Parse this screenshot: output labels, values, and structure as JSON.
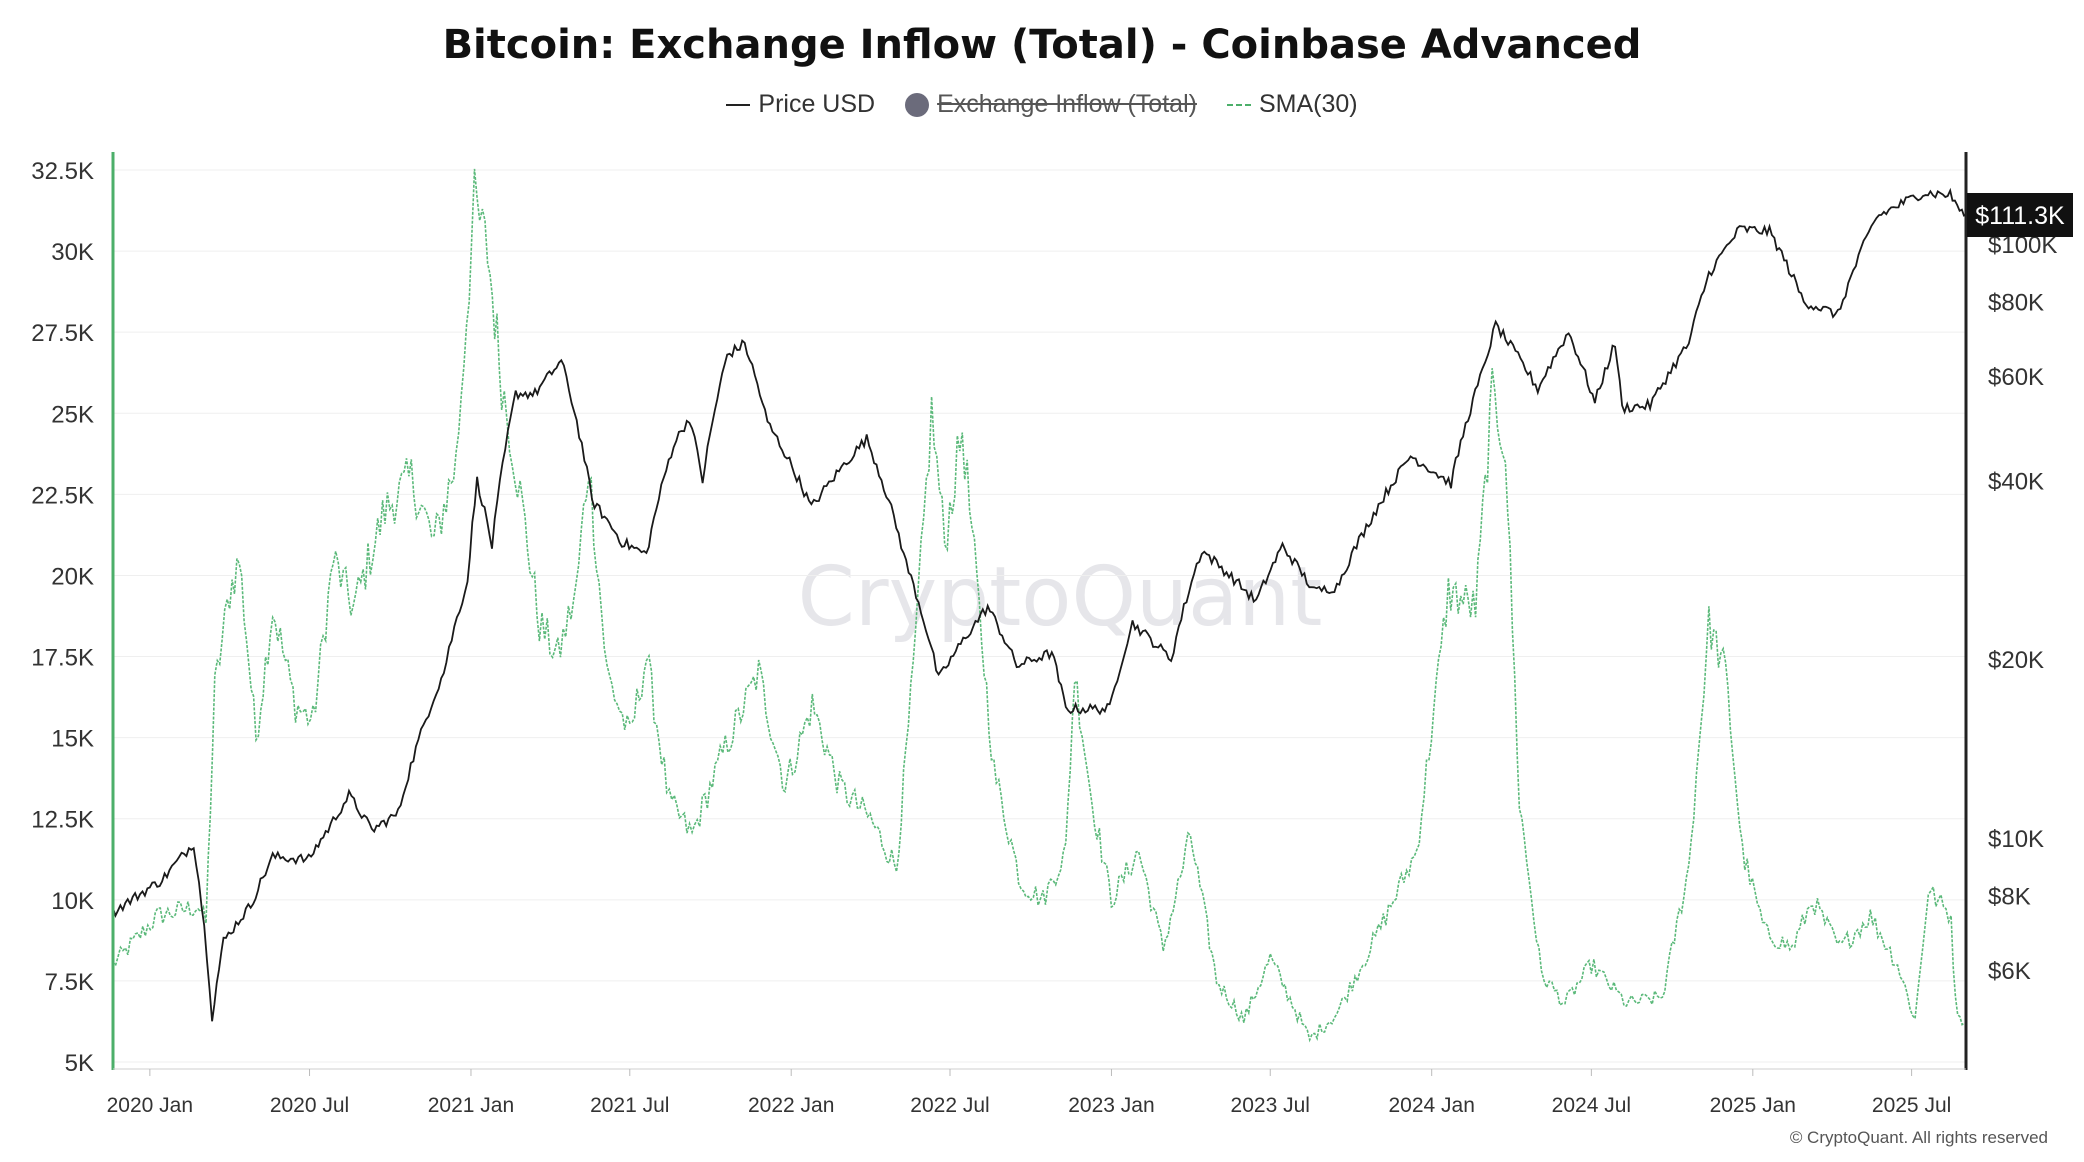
{
  "chart_data": {
    "type": "line",
    "title": "Bitcoin: Exchange Inflow (Total) - Coinbase Advanced",
    "legend": [
      {
        "name": "Price USD",
        "style": "solid",
        "color": "#222222"
      },
      {
        "name": "Exchange Inflow (Total)",
        "style": "hidden",
        "color": "#6b6b7b"
      },
      {
        "name": "SMA(30)",
        "style": "dashed",
        "color": "#4caf6a"
      }
    ],
    "x_ticks": [
      "2020 Jan",
      "2020 Jul",
      "2021 Jan",
      "2021 Jul",
      "2022 Jan",
      "2022 Jul",
      "2023 Jan",
      "2023 Jul",
      "2024 Jan",
      "2024 Jul",
      "2025 Jan",
      "2025 Jul"
    ],
    "y_left": {
      "ticks": [
        "32.5K",
        "30K",
        "27.5K",
        "25K",
        "22.5K",
        "20K",
        "17.5K",
        "15K",
        "12.5K",
        "10K",
        "7.5K",
        "5K"
      ],
      "range": [
        5000,
        32500
      ]
    },
    "y_right": {
      "ticks": [
        "$100K",
        "$80K",
        "$60K",
        "$40K",
        "$20K",
        "$10K",
        "$8K",
        "$6K"
      ],
      "scale": "log",
      "current_label": "$111.3K"
    },
    "x_range": [
      "2019-11-20",
      "2025-09-01"
    ],
    "series": [
      {
        "name": "Price USD",
        "axis": "right",
        "points": [
          [
            "2019-11-20",
            7500
          ],
          [
            "2020-01-15",
            8500
          ],
          [
            "2020-02-20",
            9800
          ],
          [
            "2020-03-12",
            5000
          ],
          [
            "2020-03-25",
            6700
          ],
          [
            "2020-04-25",
            7700
          ],
          [
            "2020-05-20",
            9300
          ],
          [
            "2020-06-30",
            9200
          ],
          [
            "2020-07-25",
            10500
          ],
          [
            "2020-08-15",
            11800
          ],
          [
            "2020-09-10",
            10300
          ],
          [
            "2020-10-10",
            11000
          ],
          [
            "2020-11-05",
            15000
          ],
          [
            "2020-12-01",
            19000
          ],
          [
            "2020-12-28",
            27000
          ],
          [
            "2021-01-08",
            40000
          ],
          [
            "2021-01-25",
            31000
          ],
          [
            "2021-02-21",
            56000
          ],
          [
            "2021-03-15",
            56000
          ],
          [
            "2021-04-14",
            63500
          ],
          [
            "2021-05-19",
            37000
          ],
          [
            "2021-06-22",
            31500
          ],
          [
            "2021-07-20",
            30000
          ],
          [
            "2021-08-20",
            46000
          ],
          [
            "2021-09-07",
            51000
          ],
          [
            "2021-09-22",
            40000
          ],
          [
            "2021-10-20",
            65000
          ],
          [
            "2021-11-09",
            68000
          ],
          [
            "2021-12-05",
            50000
          ],
          [
            "2022-01-24",
            36000
          ],
          [
            "2022-03-28",
            47000
          ],
          [
            "2022-05-12",
            29000
          ],
          [
            "2022-06-18",
            18500
          ],
          [
            "2022-08-13",
            24500
          ],
          [
            "2022-09-15",
            19500
          ],
          [
            "2022-10-25",
            20500
          ],
          [
            "2022-11-10",
            16500
          ],
          [
            "2022-12-30",
            16500
          ],
          [
            "2023-01-25",
            23000
          ],
          [
            "2023-03-10",
            20000
          ],
          [
            "2023-04-14",
            30500
          ],
          [
            "2023-06-15",
            25000
          ],
          [
            "2023-07-15",
            31000
          ],
          [
            "2023-08-20",
            26000
          ],
          [
            "2023-09-15",
            26500
          ],
          [
            "2023-10-24",
            34500
          ],
          [
            "2023-12-08",
            44000
          ],
          [
            "2024-01-23",
            39500
          ],
          [
            "2024-02-28",
            61000
          ],
          [
            "2024-03-14",
            73000
          ],
          [
            "2024-05-01",
            57000
          ],
          [
            "2024-06-05",
            71000
          ],
          [
            "2024-07-05",
            54000
          ],
          [
            "2024-07-28",
            68000
          ],
          [
            "2024-08-05",
            53000
          ],
          [
            "2024-09-06",
            53500
          ],
          [
            "2024-10-20",
            68000
          ],
          [
            "2024-11-12",
            89000
          ],
          [
            "2024-12-17",
            106000
          ],
          [
            "2025-01-20",
            105000
          ],
          [
            "2025-02-28",
            80000
          ],
          [
            "2025-04-08",
            76000
          ],
          [
            "2025-05-22",
            111000
          ],
          [
            "2025-07-14",
            122000
          ],
          [
            "2025-08-14",
            121000
          ],
          [
            "2025-08-30",
            111300
          ]
        ]
      },
      {
        "name": "SMA(30)",
        "axis": "left",
        "points": [
          [
            "2019-11-20",
            8000
          ],
          [
            "2020-01-10",
            9500
          ],
          [
            "2020-02-25",
            9800
          ],
          [
            "2020-03-05",
            9300
          ],
          [
            "2020-03-15",
            16500
          ],
          [
            "2020-04-01",
            19500
          ],
          [
            "2020-04-12",
            20500
          ],
          [
            "2020-05-01",
            15000
          ],
          [
            "2020-05-20",
            19000
          ],
          [
            "2020-06-15",
            16000
          ],
          [
            "2020-07-05",
            15500
          ],
          [
            "2020-07-28",
            20500
          ],
          [
            "2020-08-20",
            19000
          ],
          [
            "2020-09-25",
            22000
          ],
          [
            "2020-10-25",
            23000
          ],
          [
            "2020-11-20",
            21000
          ],
          [
            "2020-12-15",
            23500
          ],
          [
            "2021-01-05",
            31500
          ],
          [
            "2021-01-20",
            30000
          ],
          [
            "2021-02-05",
            26000
          ],
          [
            "2021-03-01",
            22000
          ],
          [
            "2021-03-20",
            18500
          ],
          [
            "2021-04-10",
            17500
          ],
          [
            "2021-05-01",
            19500
          ],
          [
            "2021-05-15",
            23500
          ],
          [
            "2021-06-05",
            17000
          ],
          [
            "2021-07-01",
            15000
          ],
          [
            "2021-07-20",
            17500
          ],
          [
            "2021-08-15",
            13000
          ],
          [
            "2021-09-10",
            12000
          ],
          [
            "2021-10-15",
            14500
          ],
          [
            "2021-11-25",
            17000
          ],
          [
            "2021-12-25",
            13500
          ],
          [
            "2022-01-25",
            16000
          ],
          [
            "2022-02-25",
            13500
          ],
          [
            "2022-04-01",
            12500
          ],
          [
            "2022-05-01",
            11000
          ],
          [
            "2022-05-20",
            17000
          ],
          [
            "2022-06-10",
            25000
          ],
          [
            "2022-06-25",
            21000
          ],
          [
            "2022-07-15",
            24500
          ],
          [
            "2022-08-20",
            14000
          ],
          [
            "2022-09-20",
            10500
          ],
          [
            "2022-10-15",
            10000
          ],
          [
            "2022-11-10",
            11500
          ],
          [
            "2022-11-20",
            17000
          ],
          [
            "2022-12-10",
            13000
          ],
          [
            "2023-01-01",
            10000
          ],
          [
            "2023-02-01",
            11500
          ],
          [
            "2023-03-01",
            8500
          ],
          [
            "2023-04-01",
            12000
          ],
          [
            "2023-05-01",
            7500
          ],
          [
            "2023-06-01",
            6300
          ],
          [
            "2023-07-01",
            8200
          ],
          [
            "2023-08-15",
            5700
          ],
          [
            "2023-09-15",
            6500
          ],
          [
            "2023-11-01",
            9000
          ],
          [
            "2023-12-15",
            11500
          ],
          [
            "2024-01-20",
            19500
          ],
          [
            "2024-02-20",
            19000
          ],
          [
            "2024-03-10",
            25500
          ],
          [
            "2024-03-25",
            24000
          ],
          [
            "2024-04-10",
            13000
          ],
          [
            "2024-05-05",
            7700
          ],
          [
            "2024-06-01",
            6800
          ],
          [
            "2024-07-01",
            8000
          ],
          [
            "2024-08-10",
            6800
          ],
          [
            "2024-09-20",
            7000
          ],
          [
            "2024-10-20",
            11000
          ],
          [
            "2024-11-12",
            18500
          ],
          [
            "2024-12-01",
            17000
          ],
          [
            "2024-12-20",
            11500
          ],
          [
            "2025-01-15",
            9000
          ],
          [
            "2025-02-15",
            8500
          ],
          [
            "2025-03-10",
            10000
          ],
          [
            "2025-04-10",
            8500
          ],
          [
            "2025-05-15",
            9500
          ],
          [
            "2025-06-15",
            8000
          ],
          [
            "2025-07-05",
            6300
          ],
          [
            "2025-07-20",
            10300
          ],
          [
            "2025-08-15",
            9500
          ],
          [
            "2025-08-20",
            6800
          ],
          [
            "2025-08-30",
            6200
          ]
        ]
      }
    ]
  },
  "watermark": "CryptoQuant",
  "copyright": "© CryptoQuant. All rights reserved"
}
